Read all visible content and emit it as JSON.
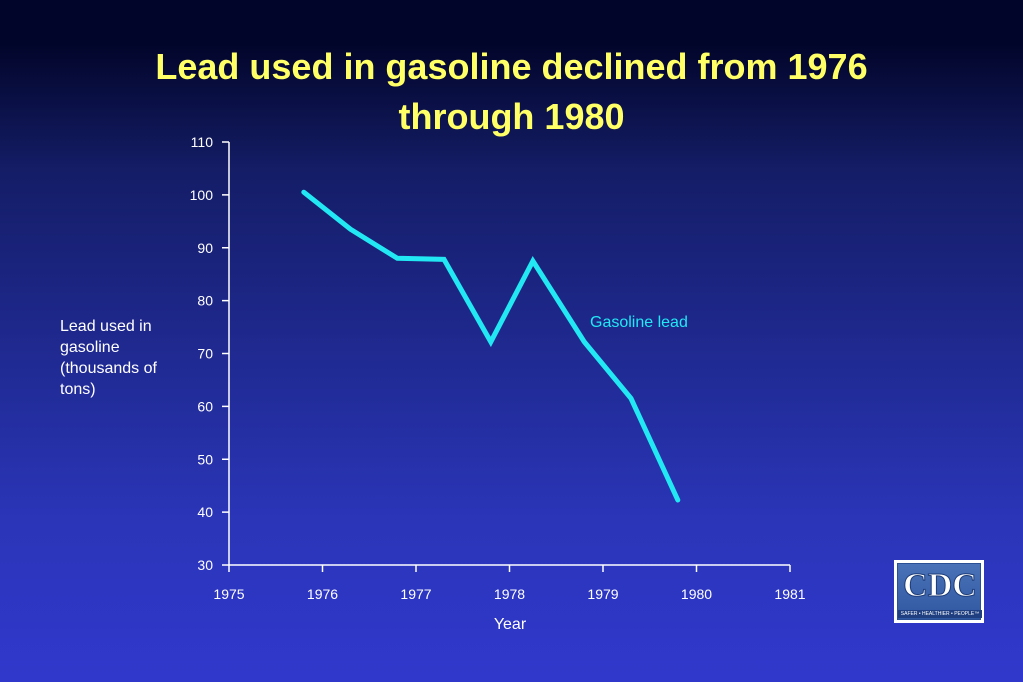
{
  "slide": {
    "title_line1": "Lead used in gasoline declined from 1976",
    "title_line2": "through 1980",
    "logo_text": "CDC",
    "logo_tagline": "SAFER • HEALTHIER • PEOPLE™"
  },
  "chart_data": {
    "type": "line",
    "title": "Lead used in gasoline declined from 1976 through 1980",
    "xlabel": "Year",
    "ylabel": "Lead used in gasoline (thousands of tons)",
    "xlim": [
      1975,
      1981
    ],
    "ylim": [
      30,
      110
    ],
    "x_ticks": [
      "1975",
      "1976",
      "1977",
      "1978",
      "1979",
      "1980",
      "1981"
    ],
    "y_ticks": [
      "30",
      "40",
      "50",
      "60",
      "70",
      "80",
      "90",
      "100",
      "110"
    ],
    "grid": false,
    "series": [
      {
        "name": "Gasoline lead",
        "color": "#22e8f4",
        "x": [
          1975.8,
          1976.3,
          1976.8,
          1977.3,
          1977.8,
          1978.25,
          1978.8,
          1979.3,
          1979.8
        ],
        "y": [
          100.5,
          93.5,
          88,
          87.8,
          72.2,
          87.5,
          72.2,
          61.5,
          42.3
        ]
      }
    ]
  }
}
